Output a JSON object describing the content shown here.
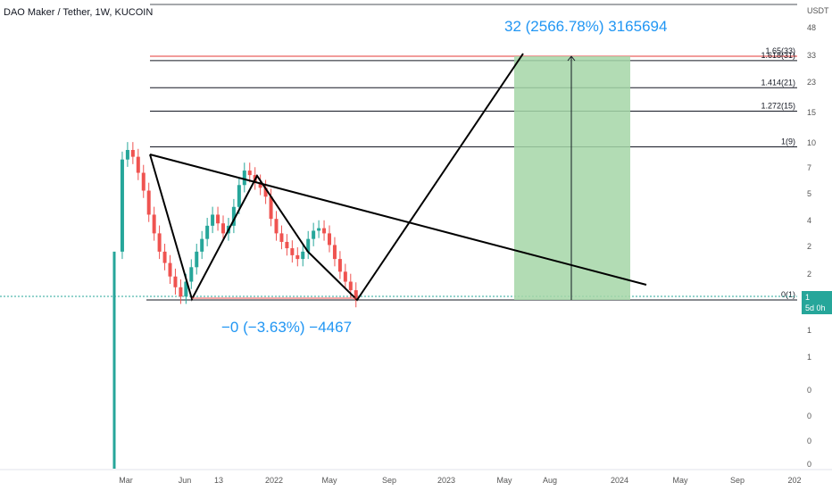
{
  "header": {
    "title": "DAO Maker / Tether, 1W, KUCOIN"
  },
  "price_tag": {
    "value": "1",
    "countdown": "5d 0h"
  },
  "annotations": {
    "target": "32 (2566.78%) 3165694",
    "bottom": "−0 (−3.63%) −4467"
  },
  "colors": {
    "up": "#26a69a",
    "down": "#ef5350",
    "projection": "#a5d6a7",
    "annotation": "#2196f3",
    "fib_red": "#e53935"
  },
  "chart_data": {
    "type": "candlestick",
    "symbol": "DAO Maker / Tether",
    "interval": "1W",
    "exchange": "KUCOIN",
    "price_unit": "USDT",
    "y_scale": "log",
    "x_ticks": [
      "Mar",
      "Jun",
      "13",
      "2022",
      "May",
      "Sep",
      "2023",
      "May",
      "Aug",
      "2024",
      "May",
      "Sep",
      "202"
    ],
    "y_ticks": [
      "48",
      "33",
      "23",
      "15",
      "10",
      "7",
      "5",
      "4",
      "2",
      "2",
      "1",
      "1",
      "1",
      "0",
      "0",
      "0",
      "0"
    ],
    "y_unit_label": "USDT",
    "fib_levels": [
      {
        "label": "1.65(33)",
        "value": 33,
        "color": "#e53935"
      },
      {
        "label": "1.618(31)",
        "value": 31
      },
      {
        "label": "1.414(21)",
        "value": 21
      },
      {
        "label": "1.272(15)",
        "value": 15
      },
      {
        "label": "1(9)",
        "value": 9
      },
      {
        "label": "0(1)",
        "value": 1
      }
    ],
    "candles_close_path": [
      2.0,
      7.5,
      8.6,
      7.8,
      6.2,
      4.8,
      3.4,
      2.6,
      2.0,
      1.7,
      1.4,
      1.2,
      1.05,
      1.3,
      1.6,
      2.0,
      2.4,
      2.9,
      3.4,
      3.0,
      2.6,
      2.9,
      3.8,
      5.2,
      6.4,
      6.0,
      5.4,
      5.0,
      4.4,
      3.2,
      2.6,
      2.3,
      2.1,
      1.9,
      1.8,
      2.0,
      2.4,
      2.7,
      2.8,
      2.6,
      2.2,
      1.8,
      1.5,
      1.3,
      1.15,
      1.0
    ],
    "projection": {
      "from": 1,
      "to": 33,
      "change_pct": 2566.78
    }
  }
}
